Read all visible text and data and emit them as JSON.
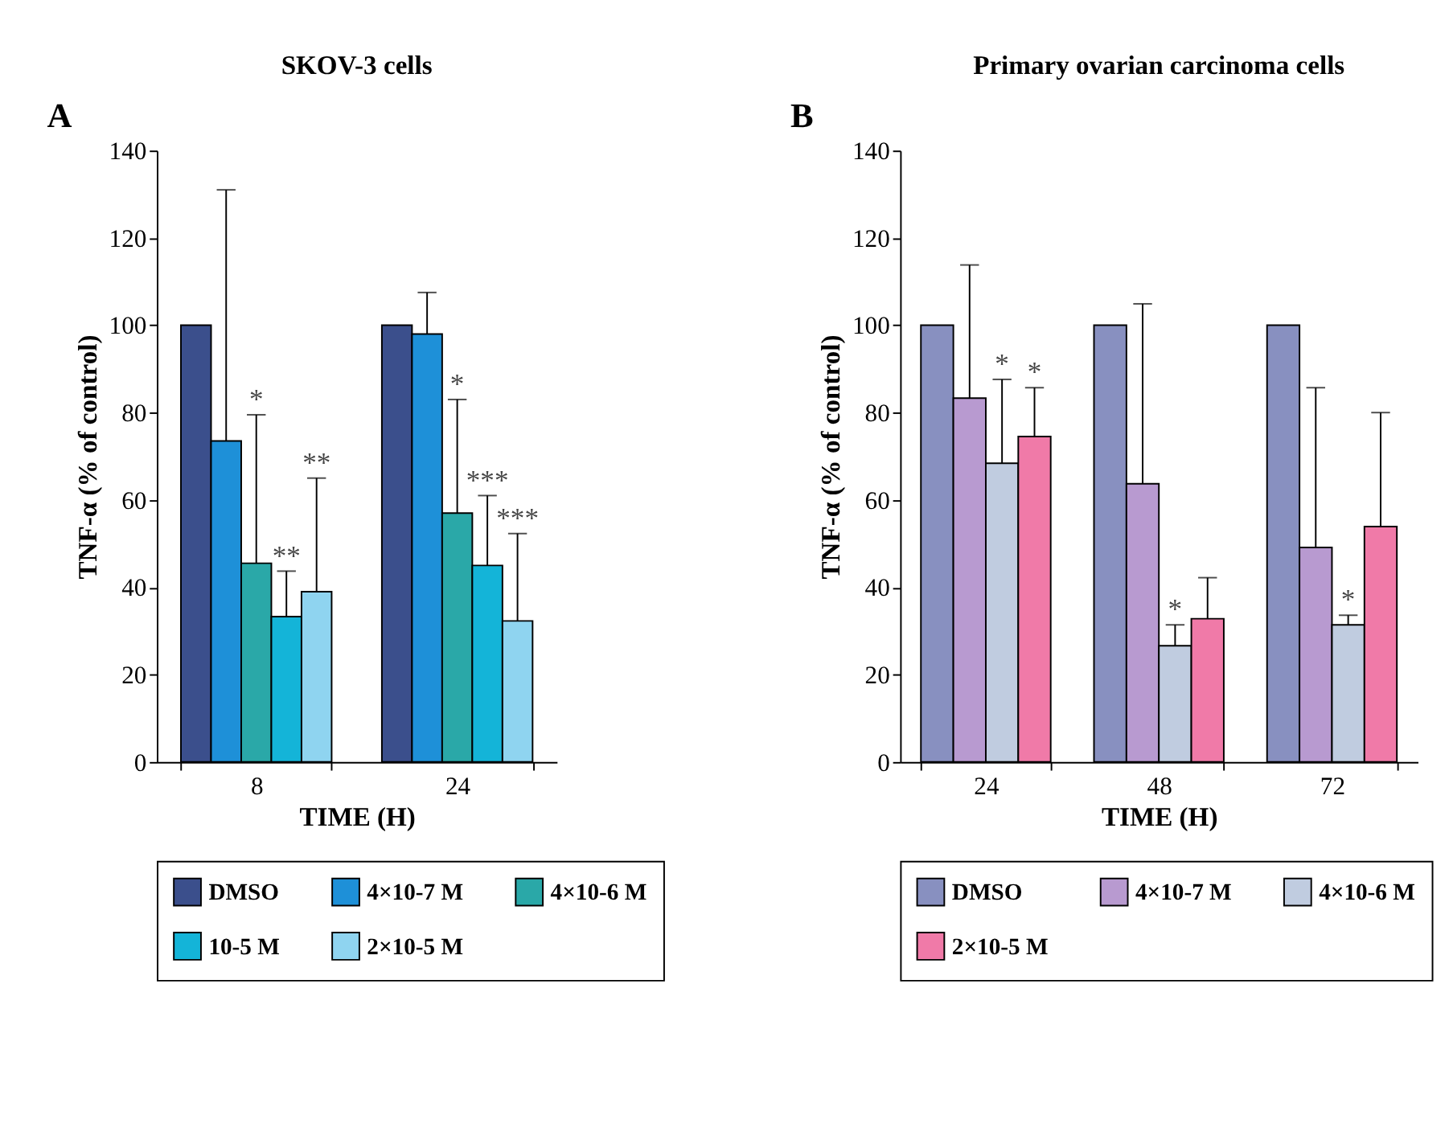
{
  "chart_data": [
    {
      "type": "bar",
      "title": "SKOV-3 cells",
      "xlabel": "TIME (H)",
      "ylabel": "TNF-α (% of control)",
      "annotations": [
        "A",
        {
          "text": "*",
          "x": "8",
          "y": 79.5
        },
        {
          "text": "*",
          "x": "24",
          "y": 83
        },
        {
          "text": "**",
          "x": "8",
          "y": 65
        }
      ],
      "categories": [
        "8",
        "24"
      ],
      "ylim": [
        0,
        140
      ],
      "yticks": [
        0,
        20,
        40,
        60,
        80,
        100,
        120,
        140
      ],
      "grid": false,
      "legend": "bottom",
      "series": [
        {
          "name": "DMSO",
          "color": "#3b4f8c",
          "values": [
            100,
            100
          ],
          "errors": [
            null,
            null
          ]
        },
        {
          "name": "4×10-7 M",
          "color": "#1e90d8",
          "values": [
            73.5,
            98
          ],
          "errors": [
            [
              73.5,
              131
            ],
            [
              98,
              107.5
            ]
          ]
        },
        {
          "name": "4×10-6 M",
          "color": "#2aa8a8",
          "values": [
            45.5,
            57
          ],
          "errors": [
            [
              45.5,
              79.5
            ],
            [
              57,
              83
            ]
          ]
        },
        {
          "name": "10-5 M",
          "color": "#14b4d8",
          "values": [
            33.3,
            45
          ],
          "errors": [
            [
              33.3,
              43.7
            ],
            [
              45,
              61
            ]
          ],
          "value_labels": [
            "**",
            "***"
          ]
        },
        {
          "name": "2×10-5 M",
          "color": "#8fd4f0",
          "values": [
            39,
            32.3
          ],
          "errors": [
            [
              39,
              65
            ],
            [
              32.3,
              52.3
            ]
          ],
          "value_labels": [
            null,
            "***"
          ]
        }
      ]
    },
    {
      "type": "bar",
      "title": "Primary ovarian carcinoma cells",
      "xlabel": "TIME (H)",
      "ylabel": "TNF-α (% of control)",
      "annotations": [
        "B"
      ],
      "categories": [
        "24",
        "48",
        "72"
      ],
      "ylim": [
        0,
        140
      ],
      "yticks": [
        0,
        20,
        40,
        60,
        80,
        100,
        120,
        140
      ],
      "grid": false,
      "legend": "bottom",
      "series": [
        {
          "name": "DMSO",
          "color": "#8890c0",
          "values": [
            100,
            100,
            100
          ],
          "errors": [
            null,
            null,
            null
          ]
        },
        {
          "name": "4×10-7 M",
          "color": "#b89ad0",
          "values": [
            83.3,
            63.7,
            49.1
          ],
          "errors": [
            [
              83.3,
              113.8
            ],
            [
              63.7,
              104.9
            ],
            [
              49.1,
              85.7
            ]
          ]
        },
        {
          "name": "4×10-6 M",
          "color": "#c0cce0",
          "values": [
            68.4,
            26.6,
            31.4
          ],
          "errors": [
            [
              68.4,
              87.6
            ],
            [
              26.6,
              31.4
            ],
            [
              31.4,
              33.6
            ]
          ],
          "value_labels": [
            "*",
            "*",
            "*"
          ]
        },
        {
          "name": "2×10-5 M",
          "color": "#f07aa8",
          "values": [
            74.5,
            32.8,
            53.9
          ],
          "errors": [
            [
              74.5,
              85.7
            ],
            [
              32.8,
              42.2
            ],
            [
              53.9,
              80
            ]
          ],
          "value_labels": [
            "*",
            null,
            null
          ]
        }
      ]
    }
  ]
}
